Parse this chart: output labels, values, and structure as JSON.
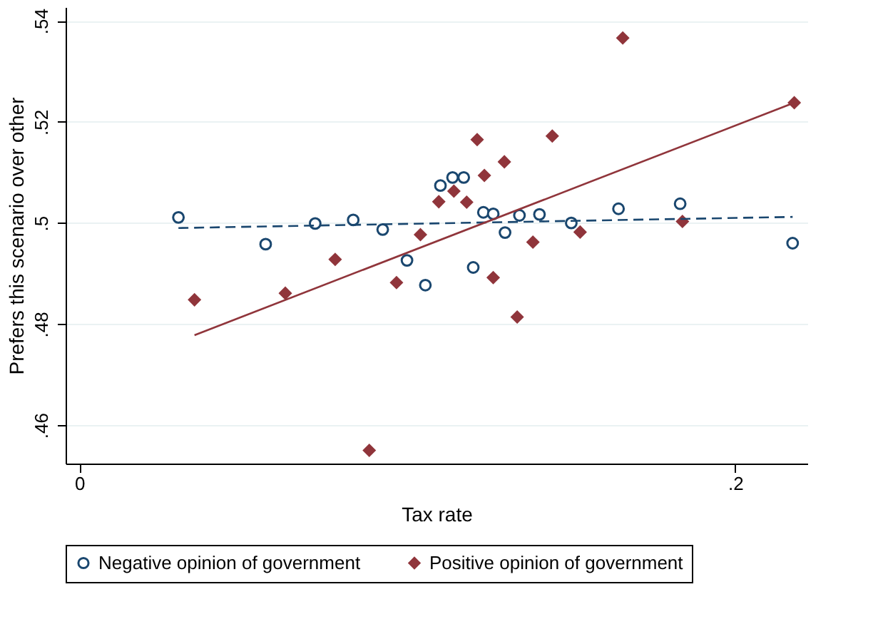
{
  "chart_data": {
    "type": "scatter",
    "xlabel": "Tax rate",
    "ylabel": "Prefers this scenario over other",
    "xlim": [
      -0.0042,
      0.222
    ],
    "ylim": [
      0.4524,
      0.5427
    ],
    "xticks": [
      {
        "value": 0,
        "label": "0"
      },
      {
        "value": 0.2,
        "label": ".2"
      }
    ],
    "yticks": [
      {
        "value": 0.46,
        "label": ".46"
      },
      {
        "value": 0.48,
        "label": ".48"
      },
      {
        "value": 0.5,
        "label": ".5"
      },
      {
        "value": 0.52,
        "label": ".52"
      },
      {
        "value": 0.54,
        "label": ".54"
      }
    ],
    "grid": "y",
    "legend": "bottom",
    "series": [
      {
        "name": "Negative opinion of government",
        "color": "#1a476f",
        "marker": "circle",
        "x": [
          0.0302,
          0.0568,
          0.0719,
          0.0835,
          0.0925,
          0.0999,
          0.1055,
          0.1101,
          0.1138,
          0.1172,
          0.1201,
          0.1232,
          0.1262,
          0.1298,
          0.1342,
          0.1403,
          0.15,
          0.1644,
          0.1832,
          0.2175
        ],
        "values": [
          0.5011,
          0.4958,
          0.4999,
          0.5006,
          0.4987,
          0.4926,
          0.4877,
          0.5074,
          0.509,
          0.509,
          0.4912,
          0.5021,
          0.5018,
          0.4981,
          0.5015,
          0.5017,
          0.5,
          0.5028,
          0.5038,
          0.496
        ]
      },
      {
        "name": "Positive opinion of government",
        "color": "#90353b",
        "marker": "diamond",
        "x": [
          0.0351,
          0.0628,
          0.078,
          0.0884,
          0.0967,
          0.104,
          0.1096,
          0.1142,
          0.1181,
          0.1213,
          0.1235,
          0.1262,
          0.1296,
          0.1335,
          0.1383,
          0.1442,
          0.1527,
          0.1657,
          0.1839,
          0.218
        ],
        "values": [
          0.4848,
          0.4861,
          0.4928,
          0.455,
          0.4882,
          0.4977,
          0.5042,
          0.5063,
          0.5041,
          0.5165,
          0.5094,
          0.4892,
          0.5121,
          0.4814,
          0.4962,
          0.5172,
          0.4982,
          0.5366,
          0.5003,
          0.5238
        ]
      },
      {
        "type": "line",
        "color": "#1a476f",
        "line_style": "dashed",
        "x": [
          0.0302,
          0.2175
        ],
        "values": [
          0.499,
          0.5012
        ]
      },
      {
        "type": "line",
        "color": "#90353b",
        "line_style": "solid",
        "x": [
          0.0351,
          0.218
        ],
        "values": [
          0.4778,
          0.5238
        ]
      }
    ]
  }
}
